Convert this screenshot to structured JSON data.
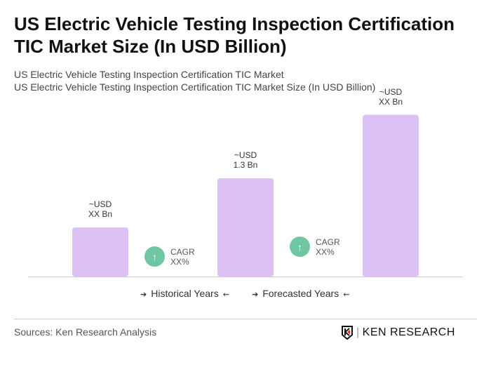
{
  "title": "US Electric Vehicle Testing Inspection Certification TIC Market Size (In USD Billion)",
  "subtitle1": "US Electric Vehicle Testing Inspection Certification TIC Market",
  "subtitle2": "US Electric Vehicle Testing Inspection Certification TIC Market Size (In USD Billion)",
  "chart_data": {
    "type": "bar",
    "categories": [
      "",
      "",
      ""
    ],
    "values": [
      0.65,
      1.3,
      2.14
    ],
    "data_labels": [
      [
        "~USD",
        "XX Bn"
      ],
      [
        "~USD",
        "1.3 Bn"
      ],
      [
        "~USD",
        "XX Bn"
      ]
    ],
    "bar_color": "#dcc1f5",
    "cagr": [
      {
        "label": "CAGR",
        "value": "XX%"
      },
      {
        "label": "CAGR",
        "value": "XX%"
      }
    ],
    "cagr_color": "#6fc7a1",
    "legend": [
      "Historical Years",
      "Forecasted Years"
    ],
    "grid": false
  },
  "source": "Sources: Ken Research Analysis",
  "logo": "KEN RESEARCH"
}
